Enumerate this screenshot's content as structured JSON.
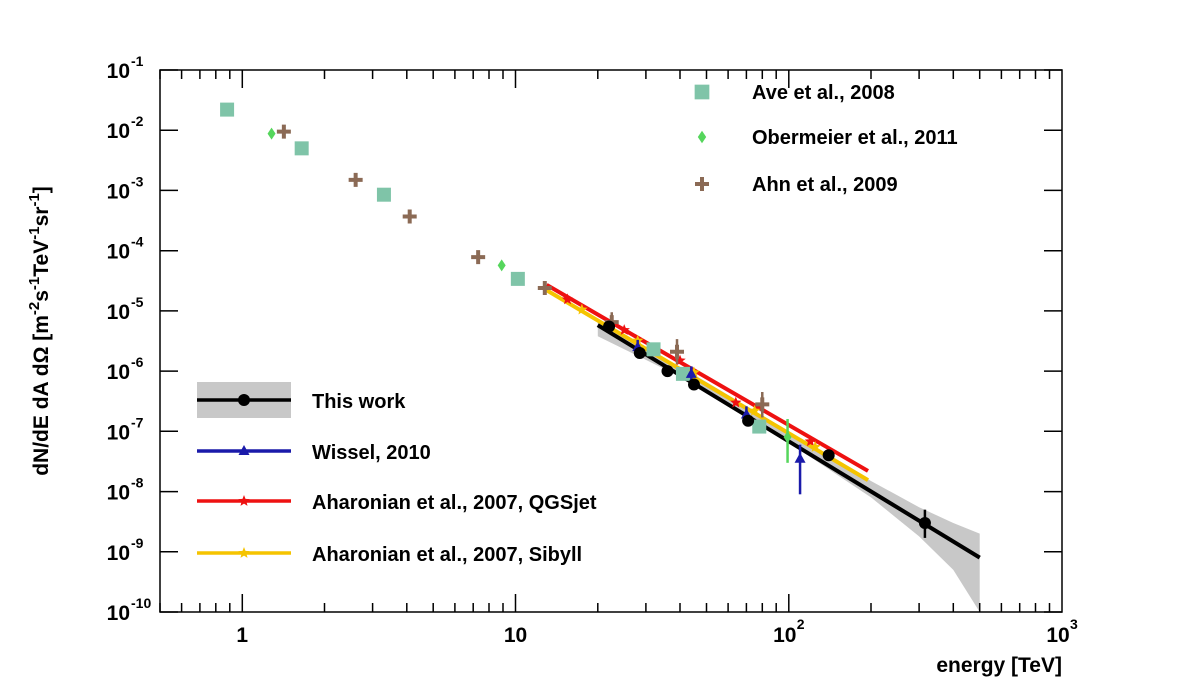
{
  "chart_data": {
    "type": "scatter",
    "xlabel": "energy [TeV]",
    "ylabel": "dN/dE dA dΩ [m-2s-1TeV-1sr-1]",
    "xscale": "log",
    "yscale": "log",
    "xlim": [
      0.5,
      1000
    ],
    "ylim": [
      1e-10,
      0.1
    ],
    "x_ticks": [
      {
        "value": 1,
        "base": "1",
        "exp": ""
      },
      {
        "value": 10,
        "base": "10",
        "exp": ""
      },
      {
        "value": 100,
        "base": "10",
        "exp": "2"
      },
      {
        "value": 1000,
        "base": "10",
        "exp": "3"
      }
    ],
    "y_ticks": [
      {
        "value": 0.1,
        "base": "10",
        "exp": "-1"
      },
      {
        "value": 0.01,
        "base": "10",
        "exp": "-2"
      },
      {
        "value": 0.001,
        "base": "10",
        "exp": "-3"
      },
      {
        "value": 0.0001,
        "base": "10",
        "exp": "-4"
      },
      {
        "value": 1e-05,
        "base": "10",
        "exp": "-5"
      },
      {
        "value": 1e-06,
        "base": "10",
        "exp": "-6"
      },
      {
        "value": 1e-07,
        "base": "10",
        "exp": "-7"
      },
      {
        "value": 1e-08,
        "base": "10",
        "exp": "-8"
      },
      {
        "value": 1e-09,
        "base": "10",
        "exp": "-9"
      },
      {
        "value": 1e-10,
        "base": "10",
        "exp": "-10"
      }
    ],
    "legend_top": [
      {
        "label": "Ave et al., 2008",
        "marker": "square",
        "color": "#7fc4a8"
      },
      {
        "label": "Obermeier et al., 2011",
        "marker": "diamond",
        "color": "#55d65c"
      },
      {
        "label": "Ahn et al., 2009",
        "marker": "cross",
        "color": "#8b6a55"
      }
    ],
    "legend_bottom": [
      {
        "label": "This work",
        "marker": "circle",
        "color": "#000000",
        "band": "#c8c8c8"
      },
      {
        "label": "Wissel, 2010",
        "marker": "triangle",
        "color": "#1a1aaa"
      },
      {
        "label": "Aharonian et al., 2007, QGSjet",
        "marker": "star",
        "color": "#ee1111"
      },
      {
        "label": "Aharonian et al., 2007, Sibyll",
        "marker": "star",
        "color": "#f5c400"
      }
    ],
    "series": [
      {
        "name": "Ave et al., 2008",
        "marker": "square",
        "color": "#7fc4a8",
        "points": [
          {
            "x": 0.88,
            "y": 0.022
          },
          {
            "x": 1.65,
            "y": 0.005
          },
          {
            "x": 3.3,
            "y": 0.00085
          },
          {
            "x": 10.2,
            "y": 3.4e-05
          },
          {
            "x": 32,
            "y": 2.3e-06
          },
          {
            "x": 41,
            "y": 9e-07
          },
          {
            "x": 78,
            "y": 1.2e-07
          }
        ]
      },
      {
        "name": "Obermeier et al., 2011",
        "marker": "diamond",
        "color": "#55d65c",
        "points": [
          {
            "x": 1.28,
            "y": 0.0088
          },
          {
            "x": 8.9,
            "y": 5.7e-05
          },
          {
            "x": 99,
            "y": 8e-08,
            "ylo": 3e-08,
            "yhi": 1.6e-07
          }
        ]
      },
      {
        "name": "Ahn et al., 2009",
        "marker": "cross",
        "color": "#8b6a55",
        "points": [
          {
            "x": 1.42,
            "y": 0.0095
          },
          {
            "x": 2.6,
            "y": 0.0015
          },
          {
            "x": 4.1,
            "y": 0.00037
          },
          {
            "x": 7.3,
            "y": 7.8e-05
          },
          {
            "x": 12.8,
            "y": 2.4e-05
          },
          {
            "x": 22.5,
            "y": 6.5e-06,
            "ylo": 4.5e-06,
            "yhi": 9.5e-06
          },
          {
            "x": 39,
            "y": 2.1e-06,
            "ylo": 1.3e-06,
            "yhi": 3.4e-06
          },
          {
            "x": 80,
            "y": 2.8e-07,
            "ylo": 1.7e-07,
            "yhi": 4.5e-07
          }
        ]
      },
      {
        "name": "This work",
        "marker": "circle",
        "color": "#000000",
        "points": [
          {
            "x": 22,
            "y": 5.5e-06
          },
          {
            "x": 28.5,
            "y": 2e-06
          },
          {
            "x": 36,
            "y": 1e-06
          },
          {
            "x": 45,
            "y": 6e-07
          },
          {
            "x": 71,
            "y": 1.5e-07
          },
          {
            "x": 140,
            "y": 4e-08
          },
          {
            "x": 315,
            "y": 3e-09,
            "ylo": 1.7e-09,
            "yhi": 5e-09
          }
        ],
        "fit": {
          "x": [
            20,
            500
          ],
          "y": [
            5.8e-06,
            8e-10
          ]
        },
        "band_upper": [
          [
            20,
            6.8e-06
          ],
          [
            50,
            6.6e-07
          ],
          [
            100,
            1e-07
          ],
          [
            200,
            1.5e-08
          ],
          [
            300,
            5.5e-09
          ],
          [
            400,
            3e-09
          ],
          [
            500,
            2e-09
          ]
        ],
        "band_lower": [
          [
            20,
            3.8e-06
          ],
          [
            50,
            4.9e-07
          ],
          [
            100,
            6.5e-08
          ],
          [
            200,
            8e-09
          ],
          [
            300,
            1.8e-09
          ],
          [
            400,
            5e-10
          ],
          [
            500,
            1e-10
          ]
        ]
      },
      {
        "name": "Wissel, 2010",
        "marker": "triangle",
        "color": "#1a1aaa",
        "points": [
          {
            "x": 28,
            "y": 2.5e-06,
            "ylo": 1.8e-06,
            "yhi": 3.3e-06
          },
          {
            "x": 44,
            "y": 9e-07,
            "ylo": 6.8e-07,
            "yhi": 1.2e-06
          },
          {
            "x": 70,
            "y": 1.9e-07,
            "ylo": 1.3e-07,
            "yhi": 2.6e-07
          },
          {
            "x": 110,
            "y": 3.5e-08,
            "ylo": 9e-09,
            "yhi": 6e-08
          }
        ]
      },
      {
        "name": "Aharonian et al., 2007, QGSjet",
        "marker": "star",
        "color": "#ee1111",
        "points": [
          {
            "x": 15.5,
            "y": 1.55e-05
          },
          {
            "x": 25,
            "y": 4.8e-06
          },
          {
            "x": 40,
            "y": 1.5e-06
          },
          {
            "x": 64,
            "y": 3e-07
          },
          {
            "x": 120,
            "y": 6.8e-08
          }
        ],
        "fit": {
          "x": [
            13,
            195
          ],
          "y": [
            2.7e-05,
            2.2e-08
          ]
        }
      },
      {
        "name": "Aharonian et al., 2007, Sibyll",
        "marker": "star",
        "color": "#f5c400",
        "points": [
          {
            "x": 17.5,
            "y": 1.05e-05
          },
          {
            "x": 28,
            "y": 3.2e-06
          },
          {
            "x": 45,
            "y": 9.5e-07
          },
          {
            "x": 75,
            "y": 2.2e-07
          },
          {
            "x": 125,
            "y": 5.5e-08
          }
        ],
        "fit": {
          "x": [
            13,
            195
          ],
          "y": [
            2.2e-05,
            1.55e-08
          ]
        }
      }
    ]
  }
}
